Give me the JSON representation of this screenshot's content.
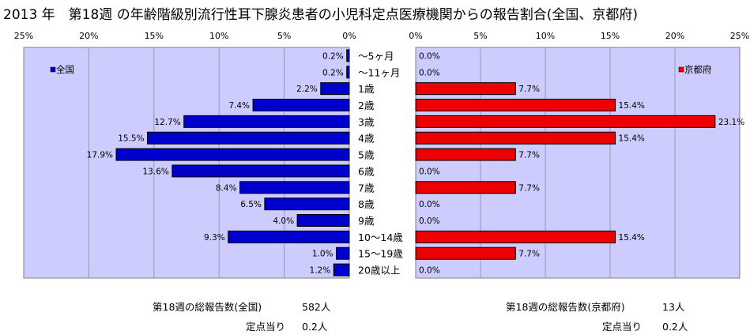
{
  "title": "2013 年　第18週 の年齢階級別流行性耳下腺炎患者の小児科定点医療機関からの報告割合(全国、京都府)",
  "colors": {
    "plot_bg": "#ccccff",
    "national": "#0000cc",
    "kyoto": "#ee0000",
    "grid": "#9999aa"
  },
  "chart_data": [
    {
      "type": "bar",
      "orientation": "horizontal",
      "direction": "right-to-left",
      "legend": "全国",
      "legend_position": "top-left",
      "grid": true,
      "xlim": [
        0,
        25
      ],
      "x_ticks": [
        "25%",
        "20%",
        "15%",
        "10%",
        "5%",
        "0%"
      ],
      "categories": [
        "～5ヶ月",
        "～11ヶ月",
        "1歳",
        "2歳",
        "3歳",
        "4歳",
        "5歳",
        "6歳",
        "7歳",
        "8歳",
        "9歳",
        "10～14歳",
        "15～19歳",
        "20歳以上"
      ],
      "values": [
        0.2,
        0.2,
        2.2,
        7.4,
        12.7,
        15.5,
        17.9,
        13.6,
        8.4,
        6.5,
        4.0,
        9.3,
        1.0,
        1.2
      ],
      "labels": [
        "0.2%",
        "0.2%",
        "2.2%",
        "7.4%",
        "12.7%",
        "15.5%",
        "17.9%",
        "13.6%",
        "8.4%",
        "6.5%",
        "4.0%",
        "9.3%",
        "1.0%",
        "1.2%"
      ]
    },
    {
      "type": "bar",
      "orientation": "horizontal",
      "direction": "left-to-right",
      "legend": "京都府",
      "legend_position": "top-right",
      "grid": true,
      "xlim": [
        0,
        25
      ],
      "x_ticks": [
        "0%",
        "5%",
        "10%",
        "15%",
        "20%",
        "25%"
      ],
      "categories": [
        "～5ヶ月",
        "～11ヶ月",
        "1歳",
        "2歳",
        "3歳",
        "4歳",
        "5歳",
        "6歳",
        "7歳",
        "8歳",
        "9歳",
        "10～14歳",
        "15～19歳",
        "20歳以上"
      ],
      "values": [
        0.0,
        0.0,
        7.7,
        15.4,
        23.1,
        15.4,
        7.7,
        0.0,
        7.7,
        0.0,
        0.0,
        15.4,
        7.7,
        0.0
      ],
      "labels": [
        "0.0%",
        "0.0%",
        "7.7%",
        "15.4%",
        "23.1%",
        "15.4%",
        "7.7%",
        "0.0%",
        "7.7%",
        "0.0%",
        "0.0%",
        "15.4%",
        "7.7%",
        "0.0%"
      ]
    }
  ],
  "footer": {
    "national_total_label": "第18週の総報告数(全国)",
    "national_total_value": "582人",
    "national_per_label": "定点当り",
    "national_per_value": "0.2人",
    "kyoto_total_label": "第18週の総報告数(京都府)",
    "kyoto_total_value": "13人",
    "kyoto_per_label": "定点当り",
    "kyoto_per_value": "0.2人"
  }
}
